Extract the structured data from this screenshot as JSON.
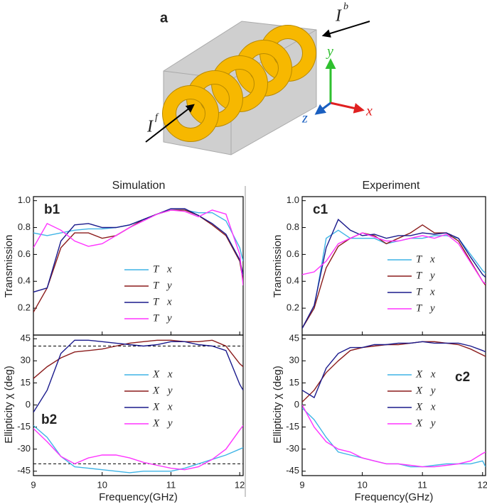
{
  "diagram": {
    "panel": "a",
    "front_label": "I",
    "front_sup": "f",
    "back_label": "I",
    "back_sup": "b",
    "axis_x": "x",
    "axis_y": "y",
    "axis_z": "z"
  },
  "headings": [
    "Simulation",
    "Experiment"
  ],
  "chart_data": [
    {
      "type": "line",
      "annotation": "b1",
      "ylabel": "Transmission",
      "x": [
        9,
        9.2,
        9.4,
        9.6,
        9.8,
        10,
        10.2,
        10.4,
        10.6,
        10.8,
        11,
        11.2,
        11.4,
        11.6,
        11.8,
        12,
        12.05
      ],
      "xlim": [
        9,
        12.05
      ],
      "ylim": [
        0,
        1.03
      ],
      "xticks": [
        9,
        10,
        11,
        12
      ],
      "yticks": [
        0.2,
        0.4,
        0.6,
        0.8,
        {
          "value": 1,
          "label": "1.0"
        }
      ],
      "series": [
        {
          "name": "T⃗x",
          "color": "#3fb4e6",
          "values": [
            0.76,
            0.74,
            0.76,
            0.78,
            0.79,
            0.79,
            0.8,
            0.82,
            0.86,
            0.9,
            0.93,
            0.93,
            0.91,
            0.91,
            0.85,
            0.65,
            0.55
          ]
        },
        {
          "name": "T⃗y",
          "color": "#8b1c1c",
          "values": [
            0.17,
            0.35,
            0.65,
            0.76,
            0.76,
            0.72,
            0.74,
            0.8,
            0.86,
            0.9,
            0.93,
            0.93,
            0.89,
            0.82,
            0.74,
            0.55,
            0.4
          ]
        },
        {
          "name": "T⃖x",
          "color": "#1a1a8c",
          "values": [
            0.32,
            0.35,
            0.7,
            0.82,
            0.83,
            0.8,
            0.8,
            0.82,
            0.86,
            0.9,
            0.94,
            0.94,
            0.89,
            0.83,
            0.75,
            0.56,
            0.45
          ]
        },
        {
          "name": "T⃖y",
          "color": "#ff33ff",
          "values": [
            0.65,
            0.83,
            0.78,
            0.7,
            0.66,
            0.68,
            0.74,
            0.8,
            0.85,
            0.9,
            0.93,
            0.92,
            0.88,
            0.93,
            0.9,
            0.6,
            0.37
          ]
        }
      ]
    },
    {
      "type": "line",
      "annotation": "b2",
      "ylabel": "Ellipticity χ (deg)",
      "xlabel": "Frequency(GHz)",
      "x": [
        9,
        9.2,
        9.4,
        9.6,
        9.8,
        10,
        10.2,
        10.4,
        10.6,
        10.8,
        11,
        11.2,
        11.4,
        11.6,
        11.8,
        12,
        12.05
      ],
      "xlim": [
        9,
        12.05
      ],
      "ylim": [
        -48,
        47.5
      ],
      "xticks": [
        9,
        10,
        11,
        12
      ],
      "yticks": [
        -45,
        -30,
        -15,
        0,
        15,
        30,
        45
      ],
      "reference_lines": [
        40,
        -40
      ],
      "series": [
        {
          "name": "X⃗x",
          "color": "#3fb4e6",
          "values": [
            -14,
            -22,
            -35,
            -42,
            -43,
            -44,
            -45,
            -46,
            -45,
            -45,
            -45,
            -43,
            -40,
            -37,
            -34,
            -30,
            -29
          ]
        },
        {
          "name": "X⃗y",
          "color": "#8b1c1c",
          "values": [
            18,
            26,
            32,
            36,
            37,
            38,
            40,
            42,
            43,
            44,
            44,
            43,
            43,
            44,
            40,
            28,
            26
          ]
        },
        {
          "name": "X⃖x",
          "color": "#1a1a8c",
          "values": [
            -5,
            10,
            35,
            44,
            44,
            43,
            42,
            41,
            40,
            41,
            43,
            43,
            41,
            40,
            37,
            14,
            10
          ]
        },
        {
          "name": "X⃖y",
          "color": "#ff33ff",
          "values": [
            -16,
            -25,
            -35,
            -40,
            -36,
            -34,
            -34,
            -36,
            -39,
            -41,
            -43,
            -44,
            -42,
            -37,
            -30,
            -17,
            -14
          ]
        }
      ]
    },
    {
      "type": "line",
      "annotation": "c1",
      "ylabel": "Transmission",
      "x": [
        9,
        9.2,
        9.4,
        9.6,
        9.8,
        10,
        10.2,
        10.4,
        10.6,
        10.8,
        11,
        11.2,
        11.4,
        11.6,
        11.8,
        12,
        12.05
      ],
      "xlim": [
        9,
        12.05
      ],
      "ylim": [
        0,
        1.03
      ],
      "xticks": [
        9,
        10,
        11,
        12
      ],
      "yticks": [
        0.2,
        0.4,
        0.6,
        0.8,
        {
          "value": 1,
          "label": "1.0"
        }
      ],
      "series": [
        {
          "name": "T⃗x",
          "color": "#3fb4e6",
          "values": [
            0.05,
            0.2,
            0.72,
            0.78,
            0.72,
            0.72,
            0.72,
            0.68,
            0.7,
            0.72,
            0.72,
            0.74,
            0.74,
            0.72,
            0.6,
            0.48,
            0.46
          ]
        },
        {
          "name": "T⃗y",
          "color": "#8b1c1c",
          "values": [
            0.05,
            0.2,
            0.5,
            0.66,
            0.72,
            0.76,
            0.74,
            0.68,
            0.72,
            0.76,
            0.82,
            0.76,
            0.76,
            0.7,
            0.55,
            0.4,
            0.37
          ]
        },
        {
          "name": "T⃖x",
          "color": "#1a1a8c",
          "values": [
            0.05,
            0.22,
            0.65,
            0.86,
            0.78,
            0.74,
            0.75,
            0.72,
            0.74,
            0.74,
            0.76,
            0.75,
            0.76,
            0.72,
            0.58,
            0.45,
            0.43
          ]
        },
        {
          "name": "T⃖y",
          "color": "#ff33ff",
          "values": [
            0.45,
            0.47,
            0.55,
            0.68,
            0.72,
            0.76,
            0.73,
            0.7,
            0.7,
            0.72,
            0.74,
            0.72,
            0.75,
            0.68,
            0.54,
            0.4,
            0.38
          ]
        }
      ]
    },
    {
      "type": "line",
      "annotation": "c2",
      "ylabel": "Ellipticity χ (deg)",
      "xlabel": "Frequency(GHz)",
      "x": [
        9,
        9.2,
        9.4,
        9.6,
        9.8,
        10,
        10.2,
        10.4,
        10.6,
        10.8,
        11,
        11.2,
        11.4,
        11.6,
        11.8,
        12,
        12.05
      ],
      "xlim": [
        9,
        12.05
      ],
      "ylim": [
        -48,
        47.5
      ],
      "xticks": [
        9,
        10,
        11,
        12
      ],
      "yticks": [
        -45,
        -30,
        -15,
        0,
        15,
        30,
        45
      ],
      "series": [
        {
          "name": "X⃗x",
          "color": "#3fb4e6",
          "values": [
            -2,
            -10,
            -22,
            -32,
            -34,
            -36,
            -38,
            -40,
            -40,
            -42,
            -42,
            -41,
            -40,
            -40,
            -40,
            -38,
            -42
          ]
        },
        {
          "name": "X⃗y",
          "color": "#8b1c1c",
          "values": [
            2,
            10,
            22,
            30,
            37,
            39,
            40,
            41,
            41,
            42,
            43,
            43,
            42,
            41,
            38,
            34,
            33
          ]
        },
        {
          "name": "X⃖x",
          "color": "#1a1a8c",
          "values": [
            10,
            5,
            25,
            35,
            39,
            39,
            41,
            41,
            42,
            42,
            43,
            42,
            42,
            42,
            40,
            37,
            36
          ]
        },
        {
          "name": "X⃖y",
          "color": "#ff33ff",
          "values": [
            0,
            -15,
            -25,
            -30,
            -32,
            -36,
            -38,
            -40,
            -40,
            -41,
            -42,
            -42,
            -41,
            -40,
            -38,
            -33,
            -32
          ]
        }
      ]
    }
  ]
}
